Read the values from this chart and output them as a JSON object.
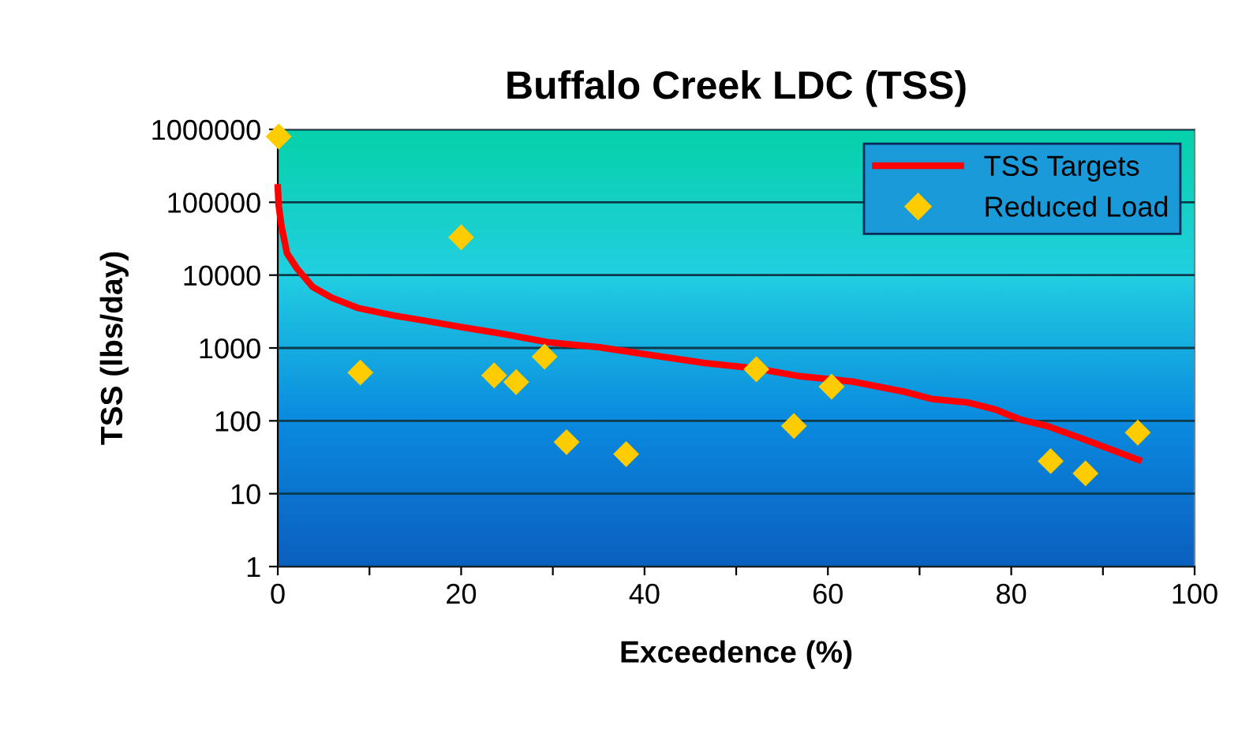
{
  "chart_data": {
    "type": "line",
    "title": "Buffalo Creek LDC (TSS)",
    "xlabel": "Exceedence (%)",
    "ylabel": "TSS (lbs/day)",
    "log": "y",
    "grid": "y",
    "legend": "top right",
    "xlim": [
      0,
      100
    ],
    "xticks": [
      0,
      {
        "value": 10,
        "label": null
      },
      20,
      {
        "value": 30,
        "label": null
      },
      40,
      {
        "value": 50,
        "label": null
      },
      60,
      {
        "value": 70,
        "label": null
      },
      80,
      {
        "value": 90,
        "label": null
      },
      100
    ],
    "ylim": [
      1,
      1000000
    ],
    "yticks": [
      1,
      10,
      100,
      1000,
      10000,
      100000,
      1000000
    ],
    "series": [
      {
        "name": "TSS Targets",
        "color": "#ff0000",
        "marker": "none",
        "line_style": "solid",
        "x": [
          0,
          0.1,
          0.4,
          1.0,
          2.1,
          3.8,
          5.9,
          8.7,
          12.7,
          16.2,
          20.2,
          24.8,
          29.4,
          35.1,
          40.9,
          46.6,
          52.1,
          56.9,
          62.7,
          68.4,
          71.3,
          75.3,
          78.2,
          81.1,
          83.9,
          87.9,
          93.9
        ],
        "values": [
          160000,
          90000,
          47000,
          20000,
          12300,
          6900,
          4900,
          3550,
          2780,
          2350,
          1920,
          1540,
          1200,
          1020,
          790,
          620,
          525,
          410,
          345,
          250,
          200,
          178,
          144,
          103,
          85,
          56,
          29
        ]
      },
      {
        "name": "Reduced Load",
        "type": "scatter",
        "color": "#ffcc00",
        "marker": "diamond",
        "x": [
          0.1,
          9.0,
          20.0,
          23.6,
          26.0,
          29.1,
          31.5,
          38.0,
          52.2,
          56.3,
          60.4,
          84.3,
          88.1,
          93.8
        ],
        "values": [
          800000,
          460,
          33000,
          420,
          340,
          760,
          51,
          35,
          510,
          85,
          295,
          28,
          19,
          69
        ]
      }
    ]
  }
}
